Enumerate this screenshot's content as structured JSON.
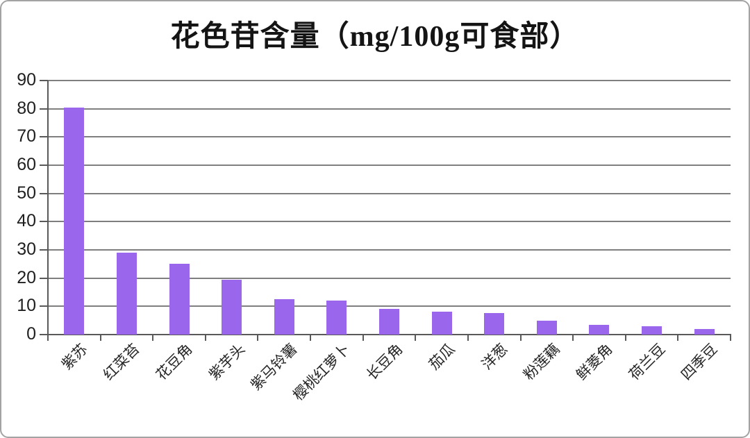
{
  "chart_data": {
    "type": "bar",
    "title": "花色苷含量（mg/100g可食部）",
    "categories": [
      "紫苏",
      "红菜苔",
      "花豆角",
      "紫芋头",
      "紫马铃薯",
      "樱桃红萝卜",
      "长豆角",
      "茄瓜",
      "洋葱",
      "粉莲藕",
      "鲜菱角",
      "荷兰豆",
      "四季豆"
    ],
    "values": [
      80.5,
      29,
      25,
      19.5,
      12.5,
      12,
      9,
      8,
      7.5,
      5,
      3.5,
      3,
      2
    ],
    "xlabel": "",
    "ylabel": "",
    "ylim": [
      0,
      90
    ],
    "ytick_step": 10,
    "ytick_labels": [
      "0",
      "10",
      "20",
      "30",
      "40",
      "50",
      "60",
      "70",
      "80",
      "90"
    ],
    "grid": true,
    "legend": false,
    "bar_color": "#9966EC",
    "gridline_color": "#7f7f7f",
    "axis_color": "#595959",
    "frame_border_color": "#a3a3a3",
    "background_color": "#ffffff"
  }
}
